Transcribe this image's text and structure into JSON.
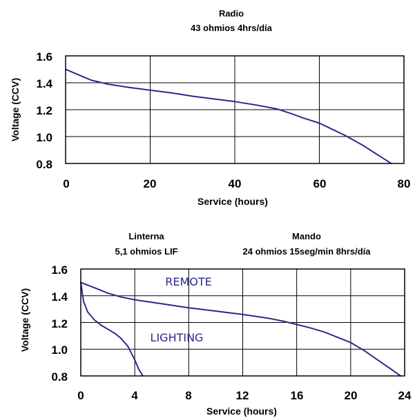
{
  "chart_data": [
    {
      "type": "line",
      "title": "Radio",
      "subtitle": "43 ohmios  4hrs/día",
      "xlabel": "Service (hours)",
      "ylabel": "Voltage (CCV)",
      "xlim": [
        0,
        80
      ],
      "ylim": [
        0.8,
        1.6
      ],
      "xticks": [
        "0",
        "20",
        "40",
        "60",
        "80"
      ],
      "yticks": [
        "1.6",
        "1.4",
        "1.2",
        "1.0",
        "0.8"
      ],
      "grid": true,
      "series": [
        {
          "color": "#2a2a8c",
          "x": [
            0,
            3,
            6,
            10,
            15,
            20,
            25,
            30,
            35,
            40,
            45,
            50,
            53,
            56,
            60,
            63,
            66,
            70,
            73,
            75,
            77
          ],
          "y": [
            1.5,
            1.46,
            1.42,
            1.39,
            1.365,
            1.345,
            1.325,
            1.3,
            1.28,
            1.26,
            1.235,
            1.205,
            1.175,
            1.14,
            1.1,
            1.055,
            1.01,
            0.94,
            0.88,
            0.84,
            0.8
          ]
        }
      ]
    },
    {
      "type": "line",
      "titles": [
        {
          "title": "Linterna",
          "subtitle": "5,1 ohmios LIF"
        },
        {
          "title": "Mando",
          "subtitle": "24 ohmios 15seg/min  8hrs/día"
        }
      ],
      "xlabel": "Service (hours)",
      "ylabel": "Voltage (CCV)",
      "xlim": [
        0,
        24
      ],
      "ylim": [
        0.8,
        1.6
      ],
      "xticks": [
        "0",
        "4",
        "8",
        "12",
        "16",
        "20",
        "24"
      ],
      "yticks": [
        "1.6",
        "1.4",
        "1.2",
        "1.0",
        "0.8"
      ],
      "grid": true,
      "annotations": [
        {
          "text": "REMOTE",
          "x": 11.4,
          "y": 1.495
        },
        {
          "text": "LIGHTING",
          "x": 7.2,
          "y": 1.08
        }
      ],
      "series": [
        {
          "name": "REMOTE",
          "color": "#2a2a8c",
          "x": [
            0,
            1,
            2,
            3,
            4,
            6,
            8,
            10,
            12,
            14,
            15,
            16,
            17,
            18,
            19,
            20,
            21,
            22,
            23,
            23.7
          ],
          "y": [
            1.5,
            1.46,
            1.42,
            1.39,
            1.37,
            1.34,
            1.31,
            1.285,
            1.26,
            1.23,
            1.21,
            1.185,
            1.16,
            1.13,
            1.09,
            1.05,
            0.99,
            0.92,
            0.85,
            0.8
          ]
        },
        {
          "name": "LIGHTING",
          "color": "#2a2a8c",
          "x": [
            0,
            0.2,
            0.5,
            1,
            1.5,
            2,
            2.5,
            3,
            3.5,
            4,
            4.3,
            4.6
          ],
          "y": [
            1.5,
            1.36,
            1.28,
            1.22,
            1.18,
            1.15,
            1.12,
            1.08,
            1.02,
            0.92,
            0.85,
            0.8
          ]
        }
      ]
    }
  ]
}
